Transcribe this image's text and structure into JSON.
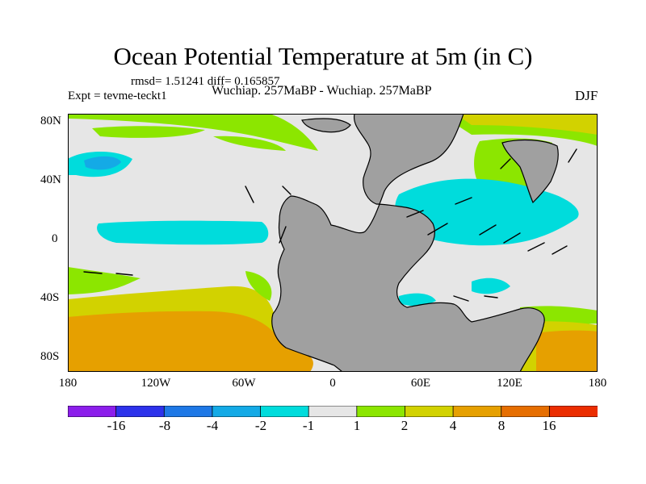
{
  "header": {
    "title": "Ocean Potential Temperature at 5m (in C)",
    "stats": "rmsd= 1.51241 diff= 0.165857",
    "experiment": "Expt = tevme-teckt1",
    "comparison": "Wuchiap. 257MaBP - Wuchiap. 257MaBP",
    "season": "DJF"
  },
  "axes": {
    "lat_labels": [
      "80N",
      "40N",
      "0",
      "40S",
      "80S"
    ],
    "lon_labels": [
      "180",
      "120W",
      "60W",
      "0",
      "60E",
      "120E",
      "180"
    ]
  },
  "colorbar": {
    "labels": [
      "-16",
      "-8",
      "-4",
      "-2",
      "-1",
      "1",
      "2",
      "4",
      "8",
      "16"
    ],
    "bins": [
      {
        "range": "< -16",
        "color": "#8c1eeb"
      },
      {
        "range": "-16 to -8",
        "color": "#2d32eb"
      },
      {
        "range": "-8 to -4",
        "color": "#1e78e6"
      },
      {
        "range": "-4 to -2",
        "color": "#14aae6"
      },
      {
        "range": "-2 to -1",
        "color": "#00dcdc"
      },
      {
        "range": "-1 to 1",
        "color": "#e6e6e6"
      },
      {
        "range": "1 to 2",
        "color": "#8ce600"
      },
      {
        "range": "2 to 4",
        "color": "#d2d200"
      },
      {
        "range": "4 to 8",
        "color": "#e6a000"
      },
      {
        "range": "8 to 16",
        "color": "#e66e00"
      },
      {
        "range": "> 16",
        "color": "#eb2d00"
      }
    ]
  },
  "colors": {
    "land": "#a0a0a0",
    "neutral": "#e6e6e6",
    "light_green": "#8ce600",
    "olive": "#d2d200",
    "orange": "#e6a000",
    "cyan": "#00dcdc",
    "sky": "#14aae6"
  }
}
